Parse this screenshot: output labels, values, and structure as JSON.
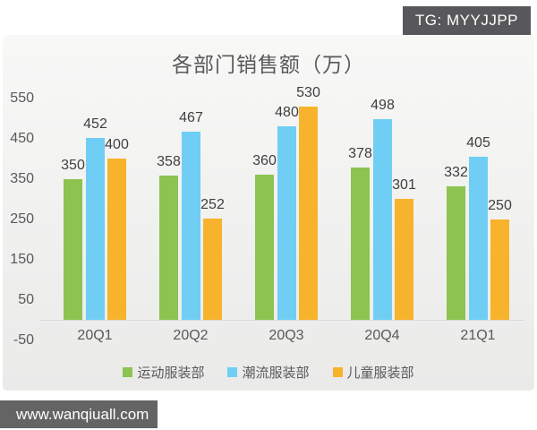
{
  "badge": {
    "text": "TG: MYYJJPP"
  },
  "watermark": {
    "text": "www.wanqiuall.com"
  },
  "chart_data": {
    "type": "bar",
    "title": "各部门销售额（万）",
    "categories": [
      "20Q1",
      "20Q2",
      "20Q3",
      "20Q4",
      "21Q1"
    ],
    "series": [
      {
        "name": "运动服装部",
        "color": "#8CC351",
        "values": [
          350,
          358,
          360,
          378,
          332
        ]
      },
      {
        "name": "潮流服装部",
        "color": "#70CEF4",
        "values": [
          452,
          467,
          480,
          498,
          405
        ]
      },
      {
        "name": "儿童服装部",
        "color": "#F7B32C",
        "values": [
          400,
          252,
          530,
          301,
          250
        ]
      }
    ],
    "y_ticks": [
      550,
      450,
      350,
      250,
      150,
      50,
      -50
    ],
    "ylim": [
      -50,
      600
    ],
    "grid": false,
    "legend_position": "bottom",
    "value_labels": true
  },
  "colors": {
    "badge_bg": "#58585A",
    "watermark_bg": "#646464",
    "panel_top": "#F8F8F7",
    "panel_bottom": "#EAEAE9",
    "axis_line": "#D8D8D6",
    "text_muted": "#595959",
    "value_label": "#3F3F3F"
  }
}
